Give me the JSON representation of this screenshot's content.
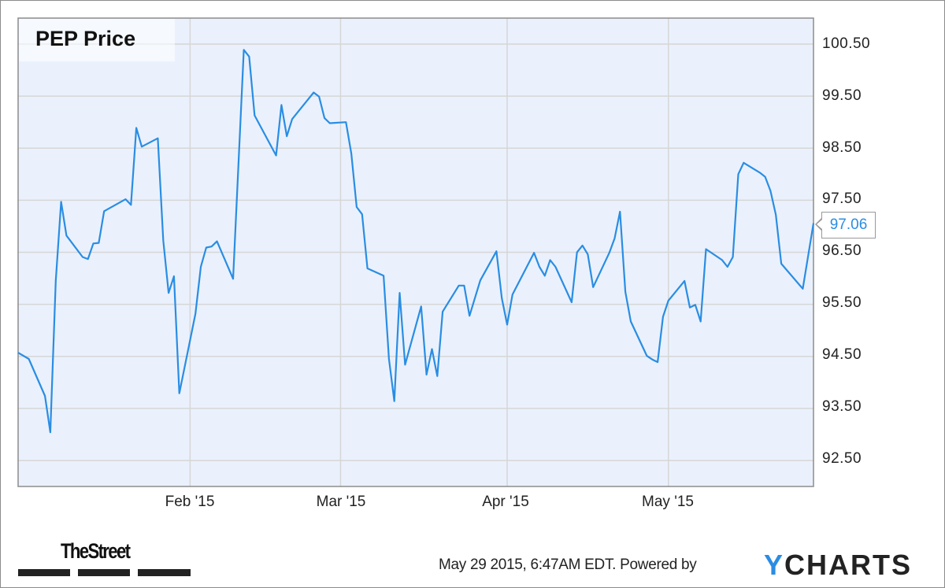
{
  "chart_data": {
    "type": "line",
    "title": "PEP Price",
    "xlabel": "",
    "ylabel": "",
    "xlim": [
      "2014-12-31",
      "2015-05-28"
    ],
    "ylim": [
      92.0,
      101.0
    ],
    "grid": true,
    "x_ticks": [
      {
        "date": "2015-02-01",
        "label": "Feb '15"
      },
      {
        "date": "2015-03-01",
        "label": "Mar '15"
      },
      {
        "date": "2015-04-01",
        "label": "Apr '15"
      },
      {
        "date": "2015-05-01",
        "label": "May '15"
      }
    ],
    "y_ticks": [
      "100.50",
      "99.50",
      "98.50",
      "97.50",
      "96.50",
      "95.50",
      "94.50",
      "93.50",
      "92.50"
    ],
    "y_axis_side": "right",
    "line_color": "#2a8de3",
    "background_color": "#eaf1fc",
    "last_value_label": "97.06",
    "series": [
      {
        "x": [
          "2014-12-31",
          "2015-01-02",
          "2015-01-05",
          "2015-01-06",
          "2015-01-07",
          "2015-01-08",
          "2015-01-09",
          "2015-01-12",
          "2015-01-13",
          "2015-01-14",
          "2015-01-15",
          "2015-01-16",
          "2015-01-20",
          "2015-01-21",
          "2015-01-22",
          "2015-01-23",
          "2015-01-26",
          "2015-01-27",
          "2015-01-28",
          "2015-01-29",
          "2015-01-30",
          "2015-02-02",
          "2015-02-03",
          "2015-02-04",
          "2015-02-05",
          "2015-02-06",
          "2015-02-09",
          "2015-02-11",
          "2015-02-12",
          "2015-02-13",
          "2015-02-17",
          "2015-02-18",
          "2015-02-19",
          "2015-02-20",
          "2015-02-24",
          "2015-02-25",
          "2015-02-26",
          "2015-02-27",
          "2015-03-02",
          "2015-03-03",
          "2015-03-04",
          "2015-03-05",
          "2015-03-06",
          "2015-03-09",
          "2015-03-10",
          "2015-03-11",
          "2015-03-12",
          "2015-03-13",
          "2015-03-16",
          "2015-03-17",
          "2015-03-18",
          "2015-03-19",
          "2015-03-20",
          "2015-03-23",
          "2015-03-24",
          "2015-03-25",
          "2015-03-27",
          "2015-03-30",
          "2015-03-31",
          "2015-04-01",
          "2015-04-02",
          "2015-04-06",
          "2015-04-07",
          "2015-04-08",
          "2015-04-09",
          "2015-04-10",
          "2015-04-13",
          "2015-04-14",
          "2015-04-15",
          "2015-04-16",
          "2015-04-17",
          "2015-04-20",
          "2015-04-21",
          "2015-04-22",
          "2015-04-23",
          "2015-04-24",
          "2015-04-27",
          "2015-04-28",
          "2015-04-29",
          "2015-04-30",
          "2015-05-01",
          "2015-05-04",
          "2015-05-05",
          "2015-05-06",
          "2015-05-07",
          "2015-05-08",
          "2015-05-11",
          "2015-05-12",
          "2015-05-13",
          "2015-05-14",
          "2015-05-15",
          "2015-05-18",
          "2015-05-19",
          "2015-05-20",
          "2015-05-21",
          "2015-05-22",
          "2015-05-26",
          "2015-05-28"
        ],
        "y": [
          94.57,
          94.45,
          93.74,
          93.04,
          95.95,
          97.47,
          96.82,
          96.41,
          96.37,
          96.67,
          96.68,
          97.29,
          97.52,
          97.41,
          98.89,
          98.53,
          98.69,
          96.73,
          95.72,
          96.04,
          93.79,
          95.32,
          96.22,
          96.59,
          96.61,
          96.71,
          95.99,
          100.39,
          100.26,
          99.13,
          98.36,
          99.33,
          98.73,
          99.06,
          99.57,
          99.49,
          99.08,
          98.98,
          99.0,
          98.4,
          97.37,
          97.23,
          96.19,
          96.05,
          94.45,
          93.64,
          95.72,
          94.34,
          95.46,
          94.15,
          94.64,
          94.12,
          95.36,
          95.86,
          95.86,
          95.28,
          95.96,
          96.52,
          95.62,
          95.11,
          95.69,
          96.49,
          96.22,
          96.05,
          96.35,
          96.22,
          95.54,
          96.5,
          96.63,
          96.46,
          95.83,
          96.49,
          96.77,
          97.28,
          95.74,
          95.17,
          94.51,
          94.44,
          94.39,
          95.26,
          95.57,
          95.95,
          95.44,
          95.49,
          95.17,
          96.56,
          96.35,
          96.22,
          96.41,
          98.0,
          98.22,
          98.03,
          97.95,
          97.68,
          97.22,
          96.28,
          95.8,
          97.06
        ]
      }
    ]
  },
  "branding": {
    "publisher": "TheStreet",
    "timestamp": "May 29 2015, 6:47AM EDT.",
    "powered_by": "Powered by",
    "provider_y": "Y",
    "provider_rest": "CHARTS"
  }
}
